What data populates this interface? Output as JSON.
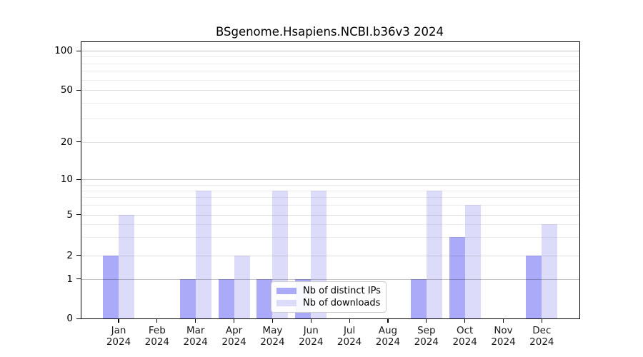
{
  "chart_data": {
    "type": "bar",
    "title": "BSgenome.Hsapiens.NCBI.b36v3 2024",
    "categories": [
      "Jan",
      "Feb",
      "Mar",
      "Apr",
      "May",
      "Jun",
      "Jul",
      "Aug",
      "Sep",
      "Oct",
      "Nov",
      "Dec"
    ],
    "category_year": "2024",
    "series": [
      {
        "name": "Nb of distinct IPs",
        "color": "#aaaaf8",
        "values": [
          2,
          0,
          1,
          1,
          1,
          1,
          0,
          0,
          1,
          3,
          0,
          2
        ]
      },
      {
        "name": "Nb of downloads",
        "color": "#dcdcfa",
        "values": [
          5,
          0,
          8,
          2,
          8,
          8,
          0,
          0,
          8,
          6,
          0,
          4
        ]
      }
    ],
    "y_axis": {
      "ticks": [
        0,
        1,
        2,
        5,
        10,
        20,
        50,
        100
      ],
      "minor_ticks": [
        3,
        4,
        6,
        7,
        8,
        9,
        30,
        40,
        60,
        70,
        80,
        90
      ],
      "scale": "log-like",
      "range": [
        0,
        100
      ]
    },
    "xlabel": "",
    "ylabel": "",
    "grid": true,
    "legend_position": "lower center"
  }
}
